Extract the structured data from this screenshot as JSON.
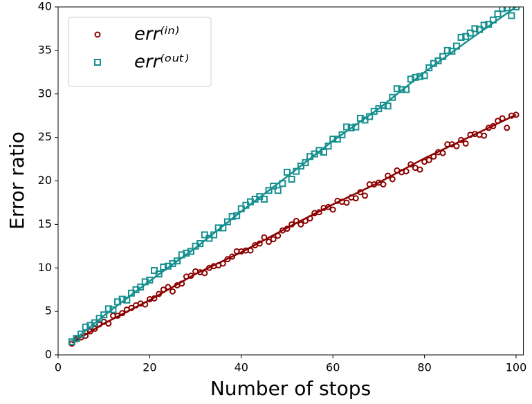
{
  "chart_data": {
    "type": "scatter",
    "x_label": "Number of stops",
    "y_label": "Error ratio",
    "xlim": [
      0,
      101.6
    ],
    "ylim": [
      0,
      40
    ],
    "xticks": [
      0,
      20,
      40,
      60,
      80,
      100
    ],
    "yticks": [
      0,
      5,
      10,
      15,
      20,
      25,
      30,
      35,
      40
    ],
    "x": [
      3,
      4,
      5,
      6,
      7,
      8,
      9,
      10,
      11,
      12,
      13,
      14,
      15,
      16,
      17,
      18,
      19,
      20,
      21,
      22,
      23,
      24,
      25,
      26,
      27,
      28,
      29,
      30,
      31,
      32,
      33,
      34,
      35,
      36,
      37,
      38,
      39,
      40,
      41,
      42,
      43,
      44,
      45,
      46,
      47,
      48,
      49,
      50,
      51,
      52,
      53,
      54,
      55,
      56,
      57,
      58,
      59,
      60,
      61,
      62,
      63,
      64,
      65,
      66,
      67,
      68,
      69,
      70,
      71,
      72,
      73,
      74,
      75,
      76,
      77,
      78,
      79,
      80,
      81,
      82,
      83,
      84,
      85,
      86,
      87,
      88,
      89,
      90,
      91,
      92,
      93,
      94,
      95,
      96,
      97,
      98,
      99,
      100
    ],
    "legend": "upper left",
    "series": [
      {
        "name": "err⁽ⁱⁿ⁾",
        "color": "#8b0000",
        "marker": "circle",
        "values": [
          1.3,
          1.8,
          2.0,
          2.2,
          2.7,
          3.0,
          3.5,
          3.8,
          3.6,
          4.5,
          4.5,
          4.8,
          5.2,
          5.4,
          5.7,
          5.9,
          5.8,
          6.4,
          6.5,
          7.0,
          7.5,
          7.8,
          7.3,
          8.0,
          8.2,
          9.0,
          9.1,
          9.6,
          9.5,
          9.4,
          10.0,
          10.2,
          10.3,
          10.5,
          11.0,
          11.3,
          11.9,
          11.9,
          12.0,
          12.0,
          12.6,
          12.8,
          13.5,
          13.0,
          13.3,
          13.7,
          14.3,
          14.5,
          15.0,
          15.4,
          15.0,
          15.4,
          15.7,
          16.3,
          16.4,
          16.9,
          17.0,
          16.7,
          17.7,
          17.6,
          17.5,
          18.1,
          18.0,
          18.7,
          18.3,
          19.6,
          19.6,
          19.8,
          19.6,
          20.6,
          20.2,
          21.2,
          21.0,
          21.1,
          21.9,
          21.5,
          21.3,
          22.2,
          22.4,
          22.8,
          23.3,
          23.2,
          24.2,
          24.2,
          24.0,
          24.7,
          24.3,
          25.3,
          25.4,
          25.3,
          25.2,
          26.1,
          26.3,
          26.9,
          27.2,
          26.1,
          27.5,
          27.6
        ],
        "fit": {
          "x": [
            3,
            10,
            20,
            30,
            40,
            50,
            60,
            70,
            80,
            90,
            100
          ],
          "values": [
            1.4,
            3.6,
            6.3,
            9.3,
            11.8,
            14.6,
            17.3,
            19.8,
            22.6,
            25.1,
            27.6
          ]
        }
      },
      {
        "name": "err⁽ᵒᵘᵗ⁾",
        "color": "#168f8f",
        "marker": "square",
        "values": [
          1.5,
          1.9,
          2.4,
          3.2,
          3.4,
          3.7,
          4.2,
          4.6,
          5.3,
          5.2,
          6.1,
          6.4,
          6.3,
          7.1,
          7.5,
          7.8,
          8.4,
          8.6,
          9.7,
          9.3,
          10.1,
          10.2,
          10.5,
          10.8,
          11.5,
          11.7,
          11.9,
          12.5,
          12.8,
          13.8,
          13.4,
          13.8,
          14.6,
          14.6,
          15.3,
          15.9,
          16.0,
          16.8,
          17.2,
          17.6,
          17.9,
          18.2,
          17.9,
          18.9,
          19.4,
          18.9,
          19.7,
          21.0,
          20.2,
          21.1,
          21.7,
          22.1,
          22.8,
          23.1,
          23.5,
          23.3,
          24.0,
          24.8,
          24.8,
          25.3,
          26.2,
          26.1,
          26.2,
          27.2,
          27.0,
          27.4,
          28.0,
          28.3,
          28.7,
          28.6,
          29.6,
          30.6,
          30.5,
          30.5,
          31.7,
          31.9,
          32.0,
          32.1,
          33.0,
          33.5,
          33.8,
          34.3,
          35.0,
          34.9,
          35.5,
          36.5,
          36.6,
          37.0,
          37.5,
          37.4,
          37.9,
          38.0,
          38.5,
          39.2,
          39.8,
          39.9,
          39.0,
          40.0
        ],
        "fit": {
          "x": [
            3,
            10,
            20,
            30,
            40,
            50,
            60,
            70,
            80,
            90,
            100
          ],
          "values": [
            1.5,
            4.5,
            8.5,
            12.3,
            16.5,
            20.5,
            24.6,
            28.3,
            32.5,
            36.3,
            40.0
          ]
        }
      }
    ]
  }
}
